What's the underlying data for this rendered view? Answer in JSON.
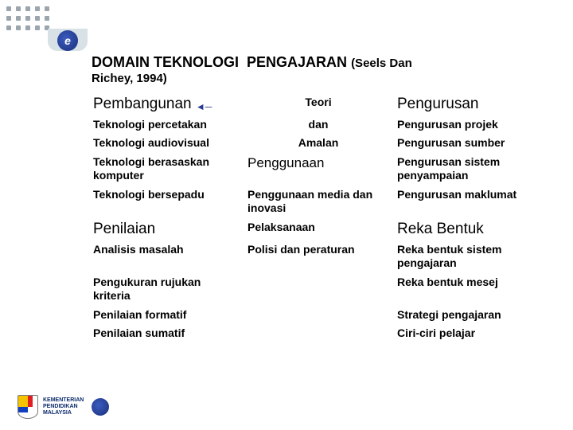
{
  "title": {
    "line1a": "DOMAIN TEKNOLOGI",
    "line1b": "PENGAJARAN",
    "line1c": "(Seels Dan",
    "line2": "Richey, 1994)"
  },
  "col1": {
    "header": "Pembangunan",
    "items": [
      "Teknologi percetakan",
      "Teknologi audiovisual",
      "Teknologi berasaskan komputer",
      "Teknologi bersepadu"
    ],
    "header2": "Penilaian",
    "items2": [
      "Analisis masalah",
      "Pengukuran rujukan kriteria",
      "Penilaian formatif",
      "Penilaian sumatif"
    ]
  },
  "col2": {
    "small": [
      "Teori",
      "dan",
      "Amalan"
    ],
    "header": "Penggunaan",
    "items": [
      "Penggunaan media dan inovasi",
      "Pelaksanaan",
      "Polisi dan peraturan"
    ]
  },
  "col3": {
    "header": "Pengurusan",
    "items": [
      "Pengurusan projek",
      "Pengurusan sumber",
      "Pengurusan sistem penyampaian",
      "Pengurusan maklumat"
    ],
    "header2": "Reka Bentuk",
    "items2": [
      "Reka bentuk sistem pengajaran",
      "Reka bentuk mesej",
      "Strategi pengajaran",
      "Ciri-ciri pelajar"
    ]
  },
  "footer": {
    "ministry1": "KEMENTERIAN",
    "ministry2": "PENDIDIKAN",
    "ministry3": "MALAYSIA"
  },
  "colors": {
    "text": "#000000",
    "accent": "#2b3b8f",
    "bg": "#ffffff"
  }
}
